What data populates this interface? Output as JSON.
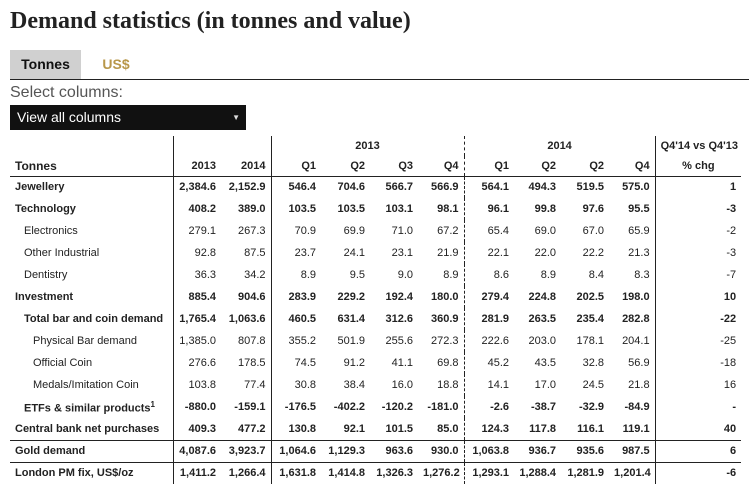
{
  "page_title": "Demand statistics (in tonnes and value)",
  "tabs": [
    {
      "label": "Tonnes",
      "active": true
    },
    {
      "label": "US$",
      "active": false
    }
  ],
  "select": {
    "label": "Select columns:",
    "value": "View all columns"
  },
  "table": {
    "row_header": "Tonnes",
    "group_2013": "2013",
    "group_2014": "2014",
    "change_header_line1": "Q4'14 vs Q4'13",
    "change_header_line2": "% chg",
    "columns": [
      "2013",
      "2014",
      "Q1",
      "Q2",
      "Q3",
      "Q4",
      "Q1",
      "Q2",
      "Q2",
      "Q4"
    ],
    "rows": [
      {
        "label": "Jewellery",
        "level": 0,
        "bold": true,
        "values": [
          "2,384.6",
          "2,152.9",
          "546.4",
          "704.6",
          "566.7",
          "566.9",
          "564.1",
          "494.3",
          "519.5",
          "575.0"
        ],
        "chg": "1"
      },
      {
        "label": "Technology",
        "level": 0,
        "bold": true,
        "values": [
          "408.2",
          "389.0",
          "103.5",
          "103.5",
          "103.1",
          "98.1",
          "96.1",
          "99.8",
          "97.6",
          "95.5"
        ],
        "chg": "-3"
      },
      {
        "label": "Electronics",
        "level": 1,
        "bold": false,
        "values": [
          "279.1",
          "267.3",
          "70.9",
          "69.9",
          "71.0",
          "67.2",
          "65.4",
          "69.0",
          "67.0",
          "65.9"
        ],
        "chg": "-2"
      },
      {
        "label": "Other Industrial",
        "level": 1,
        "bold": false,
        "values": [
          "92.8",
          "87.5",
          "23.7",
          "24.1",
          "23.1",
          "21.9",
          "22.1",
          "22.0",
          "22.2",
          "21.3"
        ],
        "chg": "-3"
      },
      {
        "label": "Dentistry",
        "level": 1,
        "bold": false,
        "values": [
          "36.3",
          "34.2",
          "8.9",
          "9.5",
          "9.0",
          "8.9",
          "8.6",
          "8.9",
          "8.4",
          "8.3"
        ],
        "chg": "-7"
      },
      {
        "label": "Investment",
        "level": 0,
        "bold": true,
        "values": [
          "885.4",
          "904.6",
          "283.9",
          "229.2",
          "192.4",
          "180.0",
          "279.4",
          "224.8",
          "202.5",
          "198.0"
        ],
        "chg": "10"
      },
      {
        "label": "Total bar and coin demand",
        "level": 1,
        "bold": true,
        "values": [
          "1,765.4",
          "1,063.6",
          "460.5",
          "631.4",
          "312.6",
          "360.9",
          "281.9",
          "263.5",
          "235.4",
          "282.8"
        ],
        "chg": "-22"
      },
      {
        "label": "Physical Bar demand",
        "level": 2,
        "bold": false,
        "values": [
          "1,385.0",
          "807.8",
          "355.2",
          "501.9",
          "255.6",
          "272.3",
          "222.6",
          "203.0",
          "178.1",
          "204.1"
        ],
        "chg": "-25"
      },
      {
        "label": "Official Coin",
        "level": 2,
        "bold": false,
        "values": [
          "276.6",
          "178.5",
          "74.5",
          "91.2",
          "41.1",
          "69.8",
          "45.2",
          "43.5",
          "32.8",
          "56.9"
        ],
        "chg": "-18"
      },
      {
        "label": "Medals/Imitation Coin",
        "level": 2,
        "bold": false,
        "values": [
          "103.8",
          "77.4",
          "30.8",
          "38.4",
          "16.0",
          "18.8",
          "14.1",
          "17.0",
          "24.5",
          "21.8"
        ],
        "chg": "16"
      },
      {
        "label": "ETFs & similar products",
        "sup": "1",
        "level": 1,
        "bold": true,
        "values": [
          "-880.0",
          "-159.1",
          "-176.5",
          "-402.2",
          "-120.2",
          "-181.0",
          "-2.6",
          "-38.7",
          "-32.9",
          "-84.9"
        ],
        "chg": "-"
      },
      {
        "label": "Central bank net purchases",
        "level": 0,
        "bold": true,
        "values": [
          "409.3",
          "477.2",
          "130.8",
          "92.1",
          "101.5",
          "85.0",
          "124.3",
          "117.8",
          "116.1",
          "119.1"
        ],
        "chg": "40"
      },
      {
        "label": "Gold demand",
        "level": 0,
        "bold": true,
        "top": true,
        "values": [
          "4,087.6",
          "3,923.7",
          "1,064.6",
          "1,129.3",
          "963.6",
          "930.0",
          "1,063.8",
          "936.7",
          "935.6",
          "987.5"
        ],
        "chg": "6"
      },
      {
        "label": "London PM fix, US$/oz",
        "level": 0,
        "bold": true,
        "top": true,
        "values": [
          "1,411.2",
          "1,266.4",
          "1,631.8",
          "1,414.8",
          "1,326.3",
          "1,276.2",
          "1,293.1",
          "1,288.4",
          "1,281.9",
          "1,201.4"
        ],
        "chg": "-6"
      }
    ]
  }
}
